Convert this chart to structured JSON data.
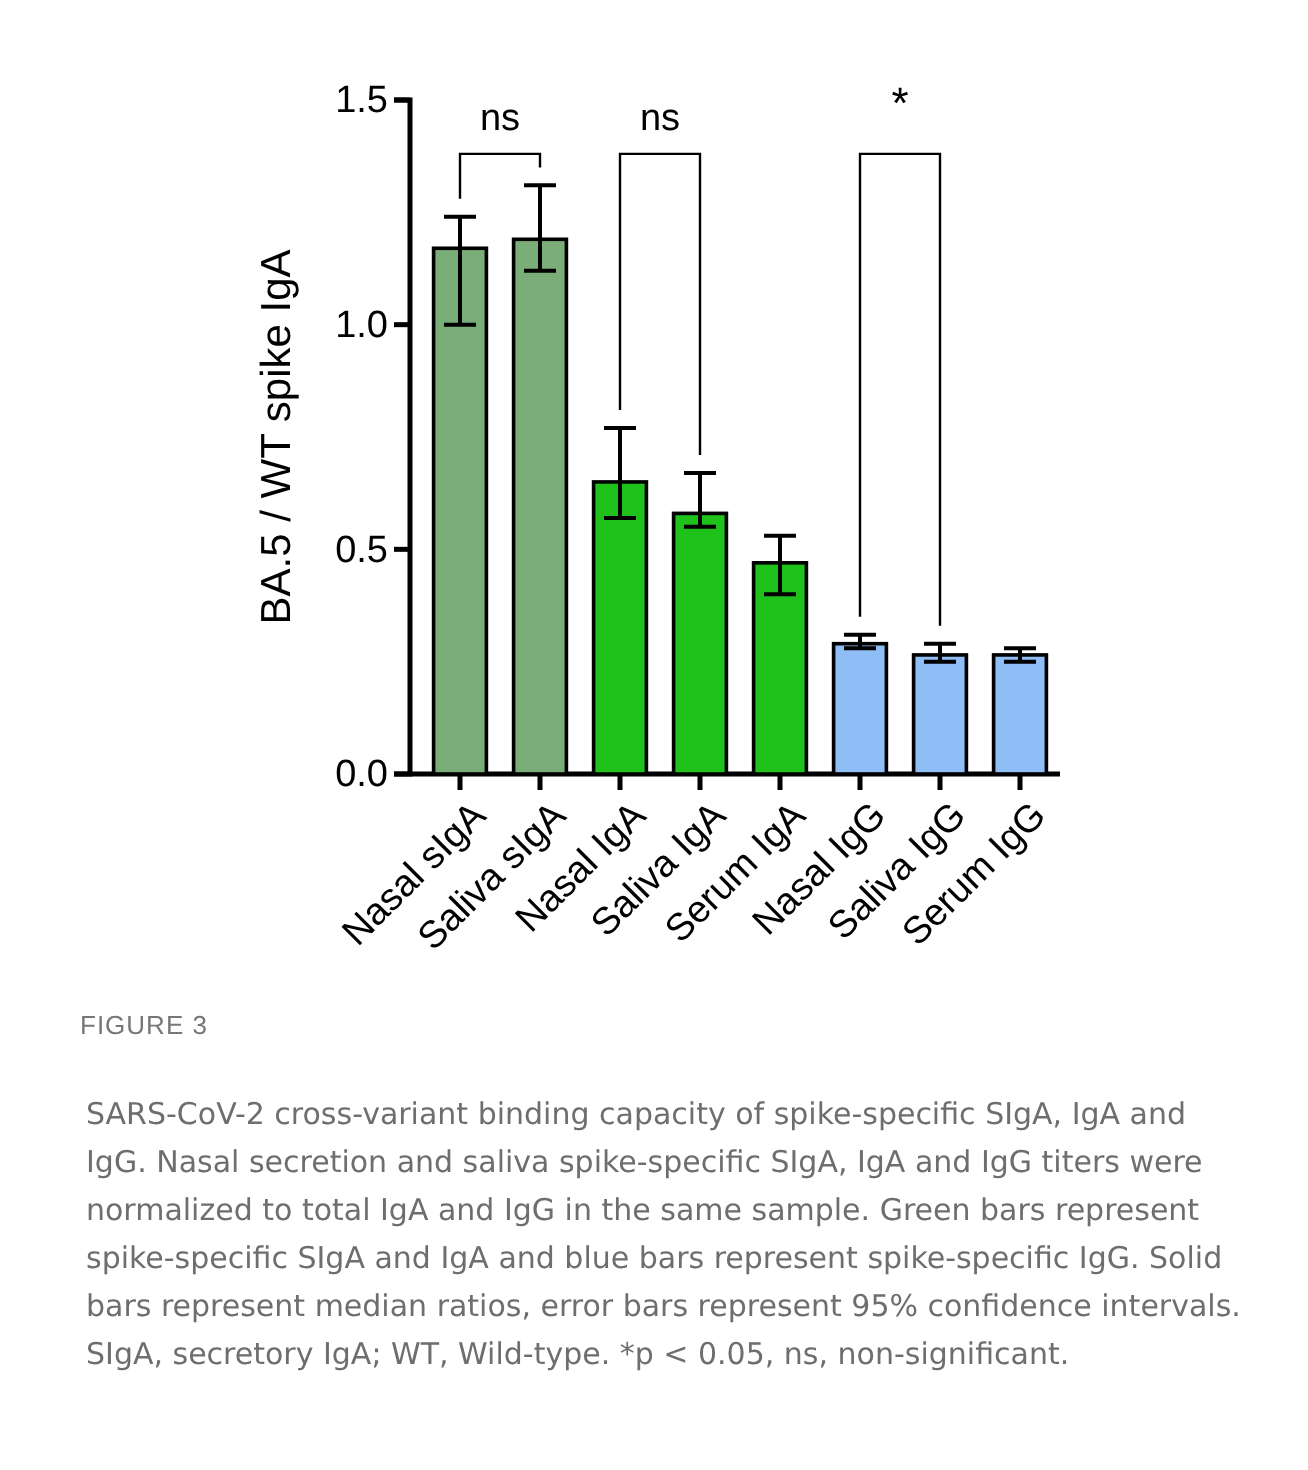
{
  "chart_data": {
    "type": "bar",
    "ylabel": "BA.5 / WT spike IgA",
    "categories": [
      "Nasal sIgA",
      "Saliva sIgA",
      "Nasal IgA",
      "Saliva IgA",
      "Serum IgA",
      "Nasal IgG",
      "Saliva IgG",
      "Serum IgG"
    ],
    "values": [
      1.17,
      1.19,
      0.65,
      0.58,
      0.47,
      0.29,
      0.265,
      0.265
    ],
    "colors": [
      "#7aad78",
      "#7aad78",
      "#1ec21b",
      "#1ec21b",
      "#1ec21b",
      "#8fbdf5",
      "#8fbdf5",
      "#8fbdf5"
    ],
    "errors": [
      [
        1.0,
        1.24
      ],
      [
        1.12,
        1.31
      ],
      [
        0.57,
        0.77
      ],
      [
        0.55,
        0.67
      ],
      [
        0.4,
        0.53
      ],
      [
        0.28,
        0.31
      ],
      [
        0.25,
        0.29
      ],
      [
        0.25,
        0.28
      ]
    ],
    "ylim": [
      0,
      1.5
    ],
    "yticks": [
      {
        "value": 0,
        "label": "0.0"
      },
      {
        "value": 0.5,
        "label": "0.5"
      },
      {
        "value": 1,
        "label": "1.0"
      },
      {
        "value": 1.5,
        "label": "1.5"
      }
    ],
    "annotations": [
      "ns",
      "ns",
      "*",
      "FIGURE 3",
      "SARS-CoV-2 cross-variant binding capacity of spike-specific SIgA, IgA and IgG. Nasal secretion and saliva spike-specific SIgA, IgA and IgG titers were normalized to total IgA and IgG in the same sample. Green bars represent spike-specific SIgA and IgA and blue bars represent spike-specific IgG. Solid bars represent median ratios, error bars represent 95% confidence intervals. SIgA, secretory IgA; WT, Wild-type. *p < 0.05, ns, non-significant."
    ]
  }
}
